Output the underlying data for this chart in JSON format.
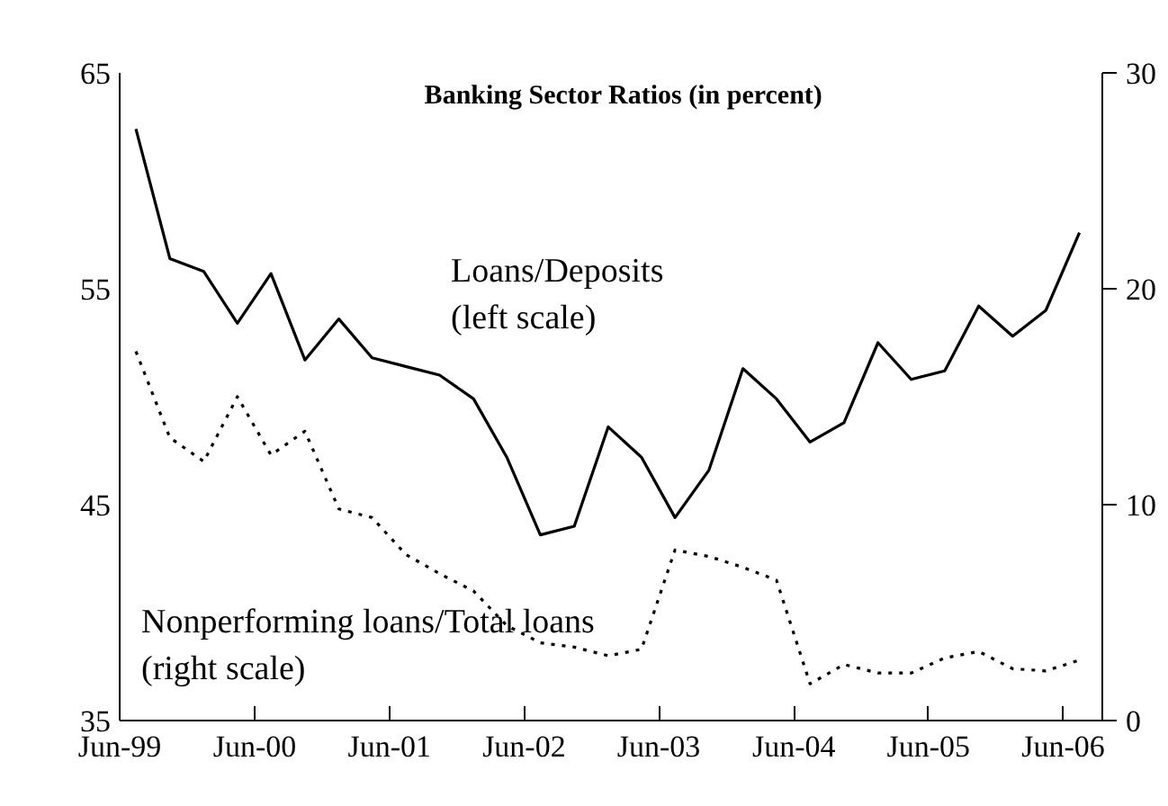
{
  "chart_data": {
    "type": "line",
    "title": "Banking Sector Ratios (in percent)",
    "x": [
      "1999-07-15",
      "1999-10-15",
      "2000-01-15",
      "2000-04-15",
      "2000-07-15",
      "2000-10-15",
      "2001-01-15",
      "2001-04-15",
      "2001-07-15",
      "2001-10-15",
      "2002-01-15",
      "2002-04-15",
      "2002-07-15",
      "2002-10-15",
      "2003-01-15",
      "2003-04-15",
      "2003-07-15",
      "2003-10-15",
      "2004-01-15",
      "2004-04-15",
      "2004-07-15",
      "2004-10-15",
      "2005-01-15",
      "2005-04-15",
      "2005-07-15",
      "2005-10-15",
      "2006-01-15",
      "2006-04-15",
      "2006-07-15"
    ],
    "series": [
      {
        "name": "Loans/Deposits\n(left scale)",
        "color": "#000000",
        "line_style": "solid",
        "values": [
          62.4,
          56.4,
          55.8,
          53.4,
          55.7,
          51.7,
          53.6,
          51.8,
          51.4,
          51.0,
          49.9,
          47.2,
          43.6,
          44.0,
          48.6,
          47.2,
          44.4,
          46.6,
          51.3,
          49.9,
          47.9,
          48.8,
          52.5,
          50.8,
          51.2,
          54.2,
          52.8,
          54.0,
          57.6
        ]
      },
      {
        "name": "Nonperforming loans/Total loans\n(right scale)",
        "color": "#000000",
        "line_style": "dotted",
        "axis": "y2",
        "values": [
          17.1,
          13.1,
          12.0,
          15.0,
          12.3,
          13.4,
          9.8,
          9.4,
          7.7,
          6.8,
          6.0,
          4.4,
          3.6,
          3.4,
          3.0,
          3.3,
          7.9,
          7.6,
          7.1,
          6.5,
          1.7,
          2.6,
          2.2,
          2.2,
          2.9,
          3.2,
          2.4,
          2.3,
          2.8
        ]
      }
    ],
    "xlim": [
      "1999-06-01",
      "2006-09-15"
    ],
    "xticks": [
      {
        "value": "1999-06-01",
        "label": "Jun-99"
      },
      {
        "value": "2000-06-01",
        "label": "Jun-00"
      },
      {
        "value": "2001-06-01",
        "label": "Jun-01"
      },
      {
        "value": "2002-06-01",
        "label": "Jun-02"
      },
      {
        "value": "2003-06-01",
        "label": "Jun-03"
      },
      {
        "value": "2004-06-01",
        "label": "Jun-04"
      },
      {
        "value": "2005-06-01",
        "label": "Jun-05"
      },
      {
        "value": "2006-06-01",
        "label": "Jun-06"
      }
    ],
    "ylim": [
      35,
      65
    ],
    "yticks": [
      35,
      45,
      55,
      65
    ],
    "y2lim": [
      0,
      30
    ],
    "y2ticks": [
      0,
      10,
      20,
      30
    ],
    "grid": false,
    "marker": "none"
  }
}
